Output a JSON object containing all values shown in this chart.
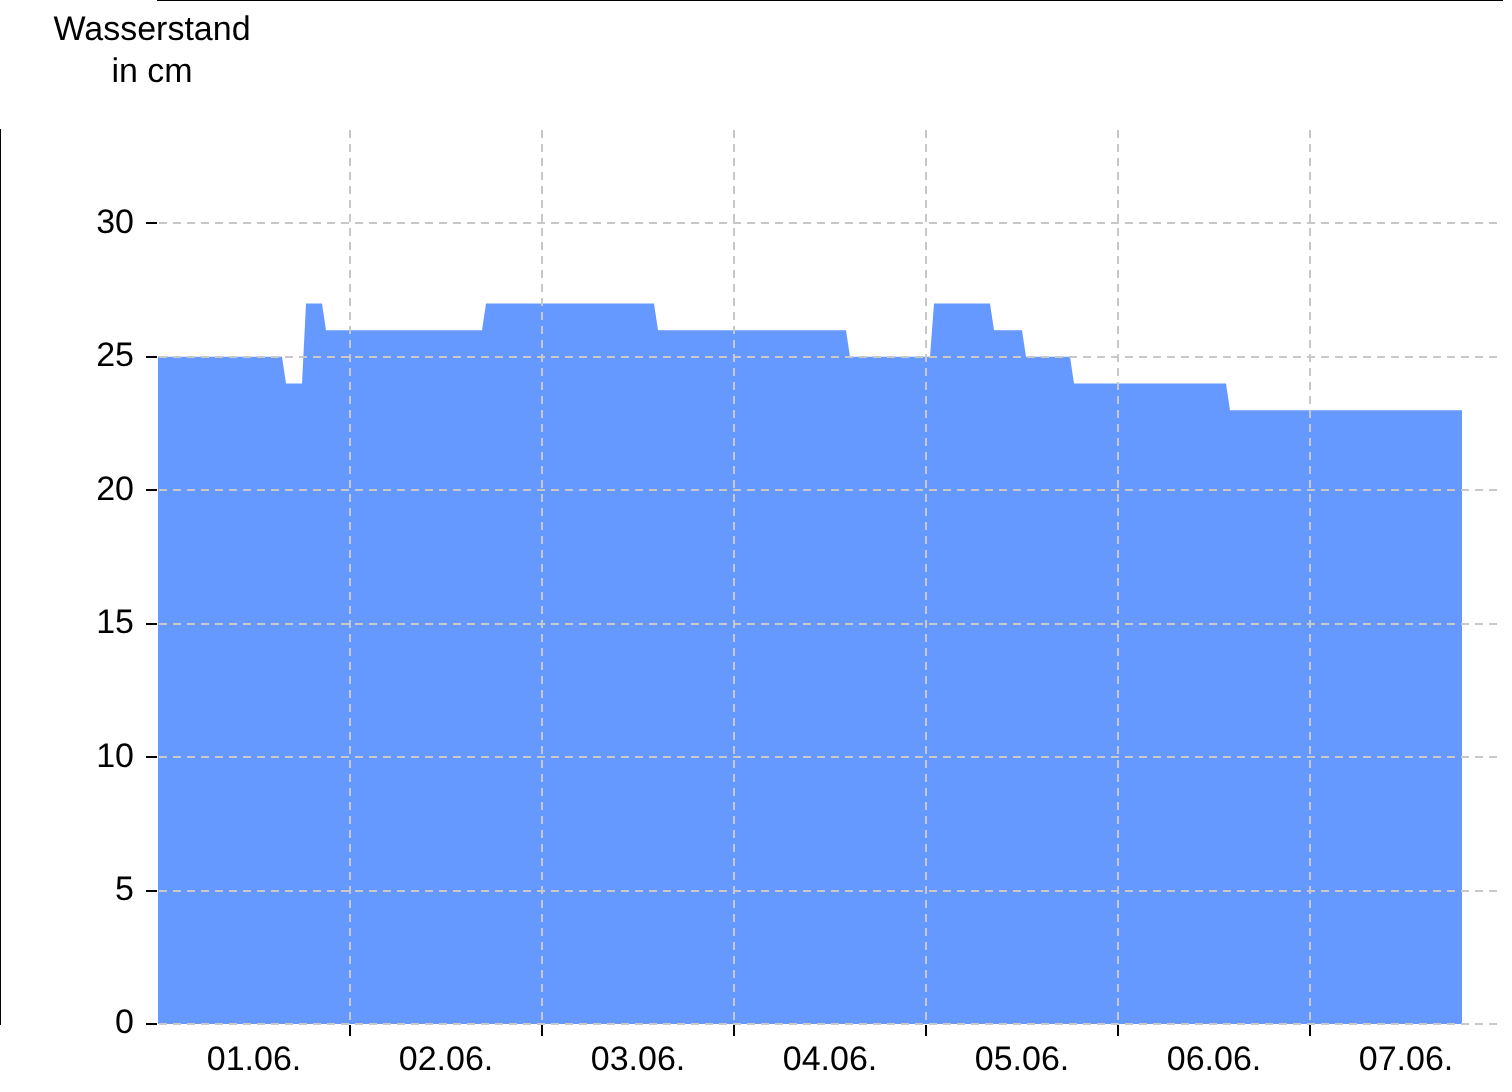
{
  "chart_data": {
    "type": "area",
    "ylabel": "Wasserstand in cm",
    "x": [
      "--06-01T00:00",
      "--06-01T15:30",
      "--06-01T16:00",
      "--06-01T18:00",
      "--06-01T18:30",
      "--06-01T20:30",
      "--06-01T21:00",
      "--06-02T16:30",
      "--06-02T17:00",
      "--06-03T14:00",
      "--06-03T14:30",
      "--06-04T14:00",
      "--06-04T14:30",
      "--06-05T00:30",
      "--06-05T01:00",
      "--06-05T08:00",
      "--06-05T08:30",
      "--06-05T12:00",
      "--06-05T12:30",
      "--06-05T18:00",
      "--06-05T18:30",
      "--06-06T13:30",
      "--06-06T14:00",
      "--06-07T19:00"
    ],
    "values": [
      25,
      25,
      24,
      24,
      27,
      27,
      26,
      26,
      27,
      27,
      26,
      26,
      25,
      25,
      27,
      27,
      26,
      26,
      25,
      25,
      24,
      24,
      23,
      23
    ],
    "color": "#6699ff",
    "xlim": [
      "--06-01T00:00",
      "--06-08T00:00"
    ],
    "xticks": [
      {
        "value": "--06-01T12:00",
        "label": "01.06."
      },
      {
        "value": "--06-02T00:00",
        "label": null
      },
      {
        "value": "--06-02T12:00",
        "label": "02.06."
      },
      {
        "value": "--06-03T00:00",
        "label": null
      },
      {
        "value": "--06-03T12:00",
        "label": "03.06."
      },
      {
        "value": "--06-04T00:00",
        "label": null
      },
      {
        "value": "--06-04T12:00",
        "label": "04.06."
      },
      {
        "value": "--06-05T00:00",
        "label": null
      },
      {
        "value": "--06-05T12:00",
        "label": "05.06."
      },
      {
        "value": "--06-06T00:00",
        "label": null
      },
      {
        "value": "--06-06T12:00",
        "label": "06.06."
      },
      {
        "value": "--06-07T00:00",
        "label": null
      },
      {
        "value": "--06-07T12:00",
        "label": "07.06."
      }
    ],
    "ylim": [
      0,
      33.5
    ],
    "yticks": [
      0,
      5,
      10,
      15,
      20,
      25,
      30
    ],
    "grid": true,
    "legend": false
  }
}
